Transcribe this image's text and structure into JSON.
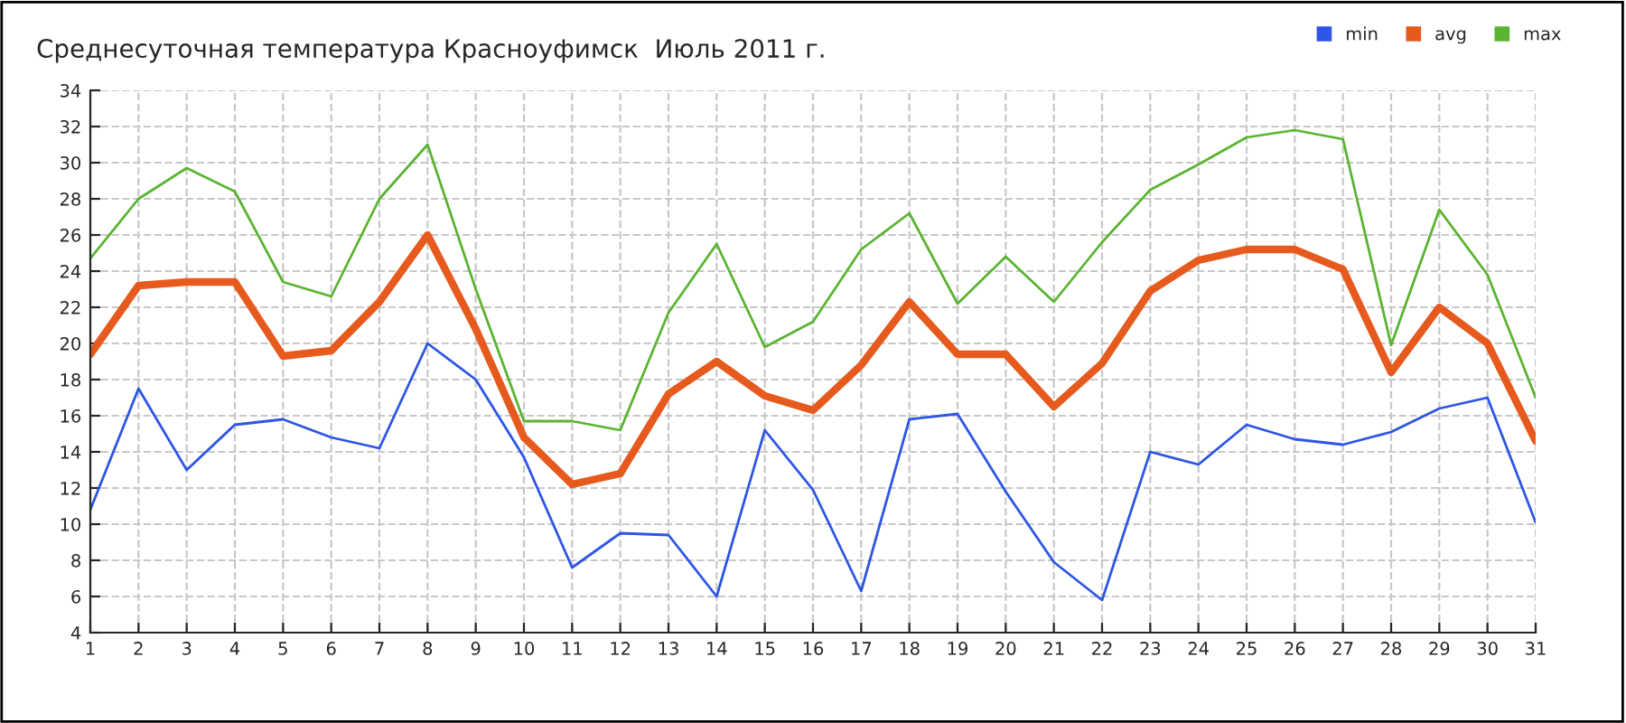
{
  "chart_data": {
    "type": "line",
    "title": "Среднесуточная температура Красноуфимск  Июль 2011 г.",
    "x": [
      1,
      2,
      3,
      4,
      5,
      6,
      7,
      8,
      9,
      10,
      11,
      12,
      13,
      14,
      15,
      16,
      17,
      18,
      19,
      20,
      21,
      22,
      23,
      24,
      25,
      26,
      27,
      28,
      29,
      30,
      31
    ],
    "series": [
      {
        "name": "min",
        "color": "#2d55e6",
        "values": [
          10.8,
          17.5,
          13.0,
          15.5,
          15.8,
          14.8,
          14.2,
          20.0,
          18.0,
          13.7,
          7.6,
          9.5,
          9.4,
          6.0,
          15.2,
          11.9,
          6.3,
          15.8,
          16.1,
          11.8,
          7.9,
          5.8,
          14.0,
          13.3,
          15.5,
          14.7,
          14.4,
          15.1,
          16.4,
          17.0,
          10.1
        ]
      },
      {
        "name": "avg",
        "color": "#e65a1e",
        "values": [
          19.4,
          23.2,
          23.4,
          23.4,
          19.3,
          19.6,
          22.3,
          26.0,
          20.8,
          14.8,
          12.2,
          12.8,
          17.2,
          19.0,
          17.1,
          16.3,
          18.8,
          22.3,
          19.4,
          19.4,
          16.5,
          18.9,
          22.9,
          24.6,
          25.2,
          25.2,
          24.1,
          18.4,
          22.0,
          20.0,
          14.6
        ]
      },
      {
        "name": "max",
        "color": "#5ab432",
        "values": [
          24.7,
          28.0,
          29.7,
          28.4,
          23.4,
          22.6,
          28.0,
          31.0,
          23.0,
          15.7,
          15.7,
          15.2,
          21.7,
          25.5,
          19.8,
          21.2,
          25.2,
          27.2,
          22.2,
          24.8,
          22.3,
          25.6,
          28.5,
          29.9,
          31.4,
          31.8,
          31.3,
          19.9,
          27.4,
          23.8,
          17.0
        ]
      }
    ],
    "xlim": [
      1,
      31
    ],
    "xticks": [
      1,
      2,
      3,
      4,
      5,
      6,
      7,
      8,
      9,
      10,
      11,
      12,
      13,
      14,
      15,
      16,
      17,
      18,
      19,
      20,
      21,
      22,
      23,
      24,
      25,
      26,
      27,
      28,
      29,
      30,
      31
    ],
    "ylim": [
      4,
      34
    ],
    "yticks": [
      4,
      6,
      8,
      10,
      12,
      14,
      16,
      18,
      20,
      22,
      24,
      26,
      28,
      30,
      32,
      34
    ],
    "grid": true,
    "legend": "top right",
    "marker": "none",
    "line_style": "solid"
  }
}
